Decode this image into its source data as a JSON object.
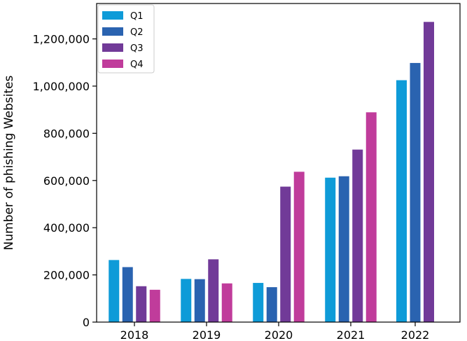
{
  "chart_data": {
    "type": "bar",
    "title": "",
    "xlabel": "",
    "ylabel": "Number of phishing Websites",
    "categories": [
      "2018",
      "2019",
      "2020",
      "2021",
      "2022"
    ],
    "series": [
      {
        "name": "Q1",
        "color": "#0e9bd8",
        "values": [
          263000,
          183000,
          166000,
          612000,
          1025000
        ]
      },
      {
        "name": "Q2",
        "color": "#2a63b0",
        "values": [
          233000,
          182000,
          148000,
          618000,
          1098000
        ]
      },
      {
        "name": "Q3",
        "color": "#713a98",
        "values": [
          152000,
          266000,
          574000,
          731000,
          1272000
        ]
      },
      {
        "name": "Q4",
        "color": "#c03c9b",
        "values": [
          137000,
          164000,
          637000,
          889000,
          null
        ]
      }
    ],
    "ylim": [
      0,
      1350000
    ],
    "yticks": [
      0,
      200000,
      400000,
      600000,
      800000,
      1000000,
      1200000
    ],
    "ytick_labels": [
      "0",
      "200,000",
      "400,000",
      "600,000",
      "800,000",
      "1,000,000",
      "1,200,000"
    ],
    "grid": false,
    "legend_position": "top-left"
  }
}
